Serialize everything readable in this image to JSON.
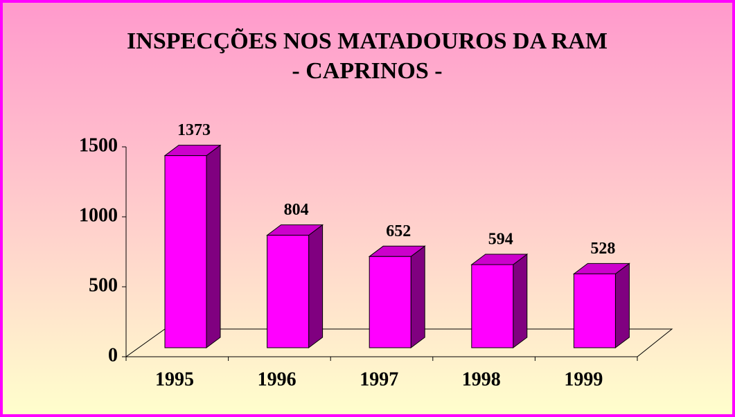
{
  "chart_data": {
    "type": "bar",
    "title": "INSPECÇÕES NOS MATADOUROS DA RAM",
    "subtitle": "- CAPRINOS -",
    "categories": [
      "1995",
      "1996",
      "1997",
      "1998",
      "1999"
    ],
    "values": [
      1373,
      804,
      652,
      594,
      528
    ],
    "color": "#ff00ff",
    "ylim": [
      0,
      1500
    ],
    "yticks": [
      0,
      500,
      1000,
      1500
    ],
    "grid": false
  }
}
